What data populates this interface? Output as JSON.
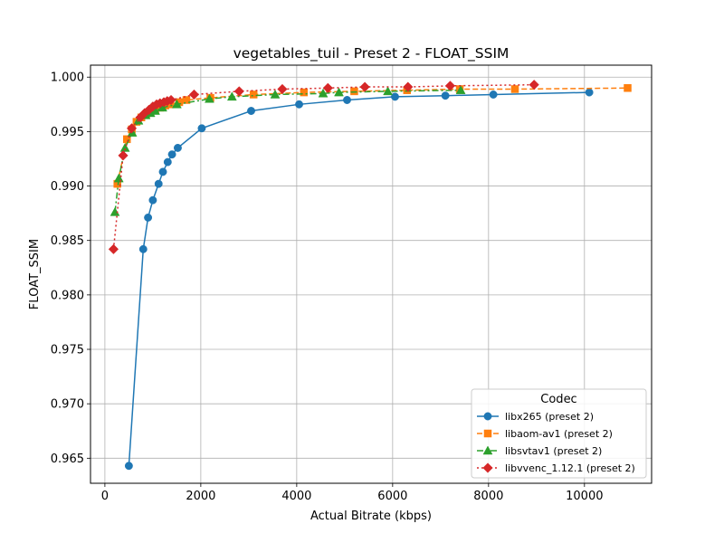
{
  "chart_data": {
    "type": "line",
    "title": "vegetables_tuil - Preset 2 - FLOAT_SSIM",
    "xlabel": "Actual Bitrate (kbps)",
    "ylabel": "FLOAT_SSIM",
    "xlim": [
      -300,
      11400
    ],
    "ylim": [
      0.9627,
      1.0011
    ],
    "xticks": [
      0,
      2000,
      4000,
      6000,
      8000,
      10000
    ],
    "yticks": [
      0.965,
      0.97,
      0.975,
      0.98,
      0.985,
      0.99,
      0.995,
      1.0
    ],
    "xtick_labels": [
      "0",
      "2000",
      "4000",
      "6000",
      "8000",
      "10000"
    ],
    "ytick_labels": [
      "0.965",
      "0.970",
      "0.975",
      "0.980",
      "0.985",
      "0.990",
      "0.995",
      "1.000"
    ],
    "grid": true,
    "legend_title": "Codec",
    "legend_placement": "lower-right",
    "series": [
      {
        "name": "libx265 (preset 2)",
        "color": "#1f77b4",
        "marker": "circle",
        "linestyle": "solid",
        "x": [
          500,
          800,
          900,
          1000,
          1120,
          1210,
          1310,
          1400,
          1520,
          2020,
          3050,
          4050,
          5050,
          6050,
          7100,
          8100,
          10100
        ],
        "y": [
          0.9643,
          0.9842,
          0.9871,
          0.9887,
          0.9902,
          0.9913,
          0.9922,
          0.9929,
          0.9935,
          0.9953,
          0.9969,
          0.9975,
          0.9979,
          0.9982,
          0.9983,
          0.9984,
          0.9986
        ]
      },
      {
        "name": "libaom-av1 (preset 2)",
        "color": "#ff7f0e",
        "marker": "square",
        "linestyle": "dashed",
        "x": [
          260,
          460,
          560,
          660,
          760,
          860,
          950,
          1050,
          1150,
          1260,
          1360,
          1550,
          1700,
          2200,
          3100,
          4150,
          5200,
          6300,
          7400,
          8550,
          10900
        ],
        "y": [
          0.9902,
          0.9943,
          0.9952,
          0.9959,
          0.9963,
          0.9966,
          0.9968,
          0.997,
          0.9972,
          0.9974,
          0.9975,
          0.9977,
          0.9979,
          0.9981,
          0.9984,
          0.9986,
          0.9987,
          0.9988,
          0.9989,
          0.9989,
          0.999
        ]
      },
      {
        "name": "libsvtav1 (preset 2)",
        "color": "#2ca02c",
        "marker": "triangle",
        "linestyle": "dashdot",
        "x": [
          210,
          290,
          420,
          570,
          700,
          850,
          950,
          1050,
          1200,
          1500,
          2180,
          2650,
          3550,
          4550,
          4880,
          5900,
          7420
        ],
        "y": [
          0.9876,
          0.9907,
          0.9935,
          0.9949,
          0.996,
          0.9965,
          0.9967,
          0.9969,
          0.9972,
          0.9975,
          0.998,
          0.9982,
          0.9984,
          0.9985,
          0.9986,
          0.9987,
          0.9988
        ]
      },
      {
        "name": "libvvenc_1.12.1 (preset 2)",
        "color": "#d62728",
        "marker": "diamond",
        "linestyle": "dotted",
        "x": [
          180,
          380,
          560,
          740,
          830,
          920,
          1000,
          1080,
          1150,
          1230,
          1300,
          1380,
          1860,
          2800,
          3700,
          4650,
          5420,
          6320,
          7200,
          8950
        ],
        "y": [
          0.9842,
          0.9928,
          0.9953,
          0.9963,
          0.9967,
          0.997,
          0.9973,
          0.9975,
          0.9976,
          0.9977,
          0.9978,
          0.9979,
          0.9984,
          0.9987,
          0.9989,
          0.999,
          0.9991,
          0.9991,
          0.9992,
          0.9993
        ]
      }
    ]
  }
}
